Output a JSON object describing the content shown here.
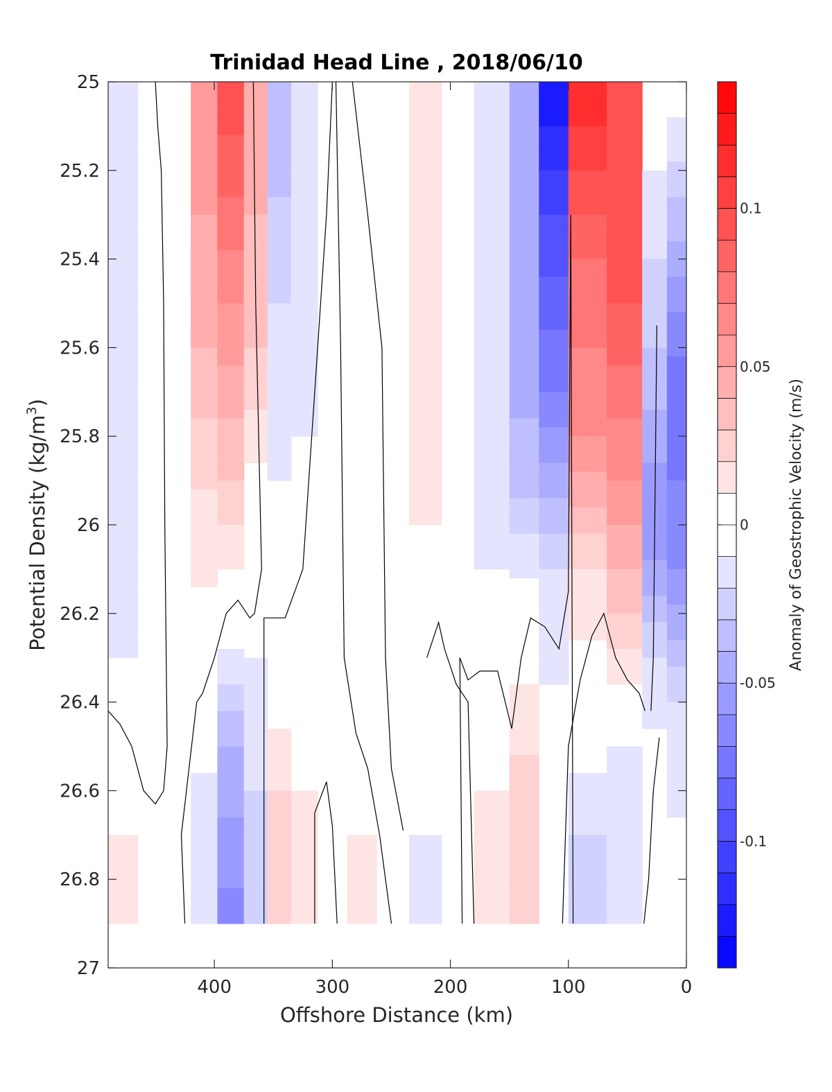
{
  "chart_data": {
    "type": "heatmap",
    "title": "Trinidad Head Line , 2018/06/10",
    "xlabel": "Offshore Distance (km)",
    "ylabel_main": "Potential Density (kg/m",
    "ylabel_sup": "3",
    "ylabel_tail": ")",
    "colorbar_label": "Anomaly of Geostrophic Velocity (m/s)",
    "xlim": [
      490,
      0
    ],
    "x_reversed": true,
    "ylim": [
      25,
      27
    ],
    "y_reversed": true,
    "x_ticks": [
      400,
      300,
      200,
      100,
      0
    ],
    "x_tick_labels": [
      "400",
      "300",
      "200",
      "100",
      "0"
    ],
    "y_ticks": [
      25,
      25.2,
      25.4,
      25.6,
      25.8,
      26,
      26.2,
      26.4,
      26.6,
      26.8,
      27
    ],
    "y_tick_labels": [
      "25",
      "25.2",
      "25.4",
      "25.6",
      "25.8",
      "26",
      "26.2",
      "26.4",
      "26.6",
      "26.8",
      "27"
    ],
    "colorbar_range": [
      -0.14,
      0.14
    ],
    "colorbar_ticks": [
      0.1,
      0.05,
      0,
      -0.05,
      -0.1
    ],
    "colorbar_tick_labels": [
      "0.1",
      "0.05",
      "0",
      "-0.05",
      "-0.1"
    ],
    "colorbar_levels": 28,
    "colors": {
      "negative": "#0000ff",
      "positive": "#ff0000",
      "zero": "#ffffff",
      "contour": "#000000"
    },
    "data_bottom_density": 26.9,
    "grid": false,
    "columns": [
      {
        "x": 475,
        "segments": [
          [
            25.0,
            -0.02
          ],
          [
            25.4,
            -0.02
          ],
          [
            25.8,
            -0.015
          ],
          [
            26.3,
            -0.01
          ],
          [
            26.5,
            0.0
          ],
          [
            26.7,
            0.01
          ],
          [
            26.9,
            0.015
          ]
        ]
      },
      {
        "x": 455,
        "segments": [
          [
            25.0,
            -0.01
          ],
          [
            25.6,
            -0.01
          ],
          [
            26.0,
            -0.005
          ],
          [
            26.5,
            0.0
          ],
          [
            26.9,
            0.005
          ]
        ]
      },
      {
        "x": 430,
        "segments": [
          [
            25.0,
            0.0
          ],
          [
            26.0,
            0.0
          ],
          [
            26.6,
            0.0
          ],
          [
            26.9,
            0.0
          ]
        ]
      },
      {
        "x": 410,
        "segments": [
          [
            25.0,
            0.06
          ],
          [
            25.6,
            0.04
          ],
          [
            26.0,
            0.015
          ],
          [
            26.4,
            0.0
          ],
          [
            26.7,
            -0.02
          ],
          [
            26.9,
            -0.02
          ]
        ]
      },
      {
        "x": 385,
        "segments": [
          [
            25.0,
            0.1
          ],
          [
            25.5,
            0.06
          ],
          [
            25.9,
            0.03
          ],
          [
            26.2,
            0.0
          ],
          [
            26.5,
            -0.04
          ],
          [
            26.9,
            -0.065
          ]
        ]
      },
      {
        "x": 365,
        "segments": [
          [
            25.0,
            0.05
          ],
          [
            25.6,
            0.03
          ],
          [
            26.0,
            0.0
          ],
          [
            26.6,
            -0.02
          ],
          [
            26.9,
            -0.03
          ]
        ]
      },
      {
        "x": 345,
        "segments": [
          [
            25.0,
            -0.04
          ],
          [
            25.5,
            -0.02
          ],
          [
            25.9,
            -0.01
          ],
          [
            26.3,
            0.0
          ],
          [
            26.6,
            0.02
          ],
          [
            26.9,
            0.03
          ]
        ]
      },
      {
        "x": 325,
        "segments": [
          [
            25.0,
            -0.015
          ],
          [
            25.8,
            -0.01
          ],
          [
            26.2,
            0.0
          ],
          [
            26.6,
            0.01
          ],
          [
            26.9,
            0.02
          ]
        ]
      },
      {
        "x": 300,
        "segments": [
          [
            25.0,
            0.0
          ],
          [
            26.0,
            0.0
          ],
          [
            26.9,
            0.0
          ]
        ]
      },
      {
        "x": 275,
        "segments": [
          [
            25.0,
            -0.01
          ],
          [
            25.8,
            -0.01
          ],
          [
            26.2,
            0.0
          ],
          [
            26.6,
            0.005
          ],
          [
            26.9,
            0.02
          ]
        ]
      },
      {
        "x": 250,
        "segments": [
          [
            25.0,
            0.0
          ],
          [
            26.4,
            0.0
          ],
          [
            26.9,
            0.0
          ]
        ]
      },
      {
        "x": 220,
        "segments": [
          [
            25.0,
            0.02
          ],
          [
            25.4,
            0.015
          ],
          [
            26.0,
            0.01
          ],
          [
            26.4,
            0.0
          ],
          [
            26.7,
            -0.01
          ],
          [
            26.9,
            -0.015
          ]
        ]
      },
      {
        "x": 195,
        "segments": [
          [
            25.0,
            0.0
          ],
          [
            26.3,
            0.0
          ],
          [
            26.9,
            0.0
          ]
        ]
      },
      {
        "x": 165,
        "segments": [
          [
            25.0,
            -0.02
          ],
          [
            25.6,
            -0.015
          ],
          [
            26.1,
            -0.01
          ],
          [
            26.4,
            0.0
          ],
          [
            26.7,
            0.015
          ],
          [
            26.9,
            0.02
          ]
        ]
      },
      {
        "x": 135,
        "segments": [
          [
            25.0,
            -0.04
          ],
          [
            25.5,
            -0.05
          ],
          [
            25.9,
            -0.035
          ],
          [
            26.2,
            0.0
          ],
          [
            26.6,
            0.025
          ],
          [
            26.9,
            0.03
          ]
        ]
      },
      {
        "x": 115,
        "segments": [
          [
            25.0,
            -0.13
          ],
          [
            25.3,
            -0.1
          ],
          [
            25.7,
            -0.07
          ],
          [
            26.1,
            -0.02
          ],
          [
            26.6,
            0.0
          ],
          [
            26.9,
            -0.005
          ]
        ]
      },
      {
        "x": 85,
        "segments": [
          [
            25.0,
            0.12
          ],
          [
            25.4,
            0.08
          ],
          [
            25.8,
            0.06
          ],
          [
            26.1,
            0.02
          ],
          [
            26.4,
            0.0
          ],
          [
            26.7,
            -0.02
          ],
          [
            26.9,
            -0.03
          ]
        ]
      },
      {
        "x": 50,
        "segments": [
          [
            25.0,
            0.1
          ],
          [
            25.5,
            0.09
          ],
          [
            25.9,
            0.06
          ],
          [
            26.2,
            0.03
          ],
          [
            26.5,
            -0.01
          ],
          [
            26.7,
            -0.02
          ],
          [
            26.9,
            -0.01
          ]
        ]
      },
      {
        "x": 25,
        "segments": [
          [
            25.0,
            0.0
          ],
          [
            25.6,
            -0.03
          ],
          [
            26.0,
            -0.06
          ],
          [
            26.3,
            -0.02
          ],
          [
            26.6,
            0.0
          ],
          [
            26.9,
            0.0
          ]
        ]
      },
      {
        "x": 8,
        "segments": [
          [
            25.0,
            0.0
          ],
          [
            25.7,
            -0.08
          ],
          [
            26.1,
            -0.06
          ],
          [
            26.4,
            -0.02
          ],
          [
            26.9,
            0.0
          ]
        ]
      }
    ],
    "contour_lines": [
      {
        "name": "zero-contour",
        "points": [
          [
            490,
            26.42
          ],
          [
            480,
            26.45
          ],
          [
            470,
            26.5
          ],
          [
            460,
            26.6
          ],
          [
            450,
            26.63
          ],
          [
            443,
            26.6
          ],
          [
            440,
            26.5
          ],
          [
            442,
            26.0
          ],
          [
            443,
            25.5
          ],
          [
            445,
            25.2
          ],
          [
            448,
            25.1
          ],
          [
            450,
            25.0
          ]
        ]
      },
      {
        "name": "zero-contour",
        "points": [
          [
            425,
            26.9
          ],
          [
            428,
            26.7
          ],
          [
            415,
            26.4
          ],
          [
            410,
            26.38
          ],
          [
            400,
            26.3
          ],
          [
            390,
            26.2
          ],
          [
            380,
            26.17
          ],
          [
            370,
            26.21
          ],
          [
            366,
            26.2
          ],
          [
            360,
            26.1
          ],
          [
            365,
            25.5
          ],
          [
            367,
            25.0
          ]
        ]
      },
      {
        "name": "zero-contour",
        "points": [
          [
            358,
            26.9
          ],
          [
            358,
            26.21
          ],
          [
            345,
            26.21
          ],
          [
            340,
            26.21
          ],
          [
            325,
            26.1
          ],
          [
            315,
            25.7
          ],
          [
            305,
            25.3
          ],
          [
            300,
            25.0
          ]
        ]
      },
      {
        "name": "zero-contour",
        "points": [
          [
            315,
            26.9
          ],
          [
            315,
            26.65
          ],
          [
            305,
            26.58
          ],
          [
            300,
            26.68
          ],
          [
            296,
            26.9
          ]
        ]
      },
      {
        "name": "zero-contour",
        "points": [
          [
            297,
            25.0
          ],
          [
            293,
            25.6
          ],
          [
            290,
            26.3
          ],
          [
            280,
            26.47
          ],
          [
            270,
            26.55
          ],
          [
            260,
            26.7
          ],
          [
            250,
            26.9
          ]
        ]
      },
      {
        "name": "zero-contour",
        "points": [
          [
            240,
            26.69
          ],
          [
            250,
            26.55
          ],
          [
            255,
            26.3
          ],
          [
            258,
            25.6
          ],
          [
            270,
            25.3
          ],
          [
            283,
            25.0
          ]
        ]
      },
      {
        "name": "zero-contour",
        "points": [
          [
            220,
            26.3
          ],
          [
            210,
            26.22
          ],
          [
            205,
            26.28
          ],
          [
            195,
            26.36
          ],
          [
            185,
            26.4
          ],
          [
            180,
            26.9
          ]
        ]
      },
      {
        "name": "zero-contour",
        "points": [
          [
            190,
            26.9
          ],
          [
            192,
            26.3
          ],
          [
            185,
            26.35
          ],
          [
            175,
            26.33
          ],
          [
            160,
            26.33
          ],
          [
            148,
            26.46
          ],
          [
            140,
            26.3
          ],
          [
            132,
            26.21
          ],
          [
            120,
            26.23
          ],
          [
            108,
            26.28
          ],
          [
            100,
            26.15
          ],
          [
            98,
            25.3
          ],
          [
            96,
            26.9
          ]
        ]
      },
      {
        "name": "zero-contour",
        "points": [
          [
            105,
            26.9
          ],
          [
            100,
            26.5
          ],
          [
            90,
            26.35
          ],
          [
            80,
            26.25
          ],
          [
            70,
            26.2
          ],
          [
            60,
            26.3
          ],
          [
            50,
            26.35
          ],
          [
            40,
            26.38
          ],
          [
            35,
            26.42
          ]
        ]
      },
      {
        "name": "zero-contour",
        "points": [
          [
            30,
            26.42
          ],
          [
            28,
            26.3
          ],
          [
            25,
            25.55
          ]
        ]
      },
      {
        "name": "zero-contour",
        "points": [
          [
            36,
            26.9
          ],
          [
            32,
            26.8
          ],
          [
            28,
            26.6
          ],
          [
            23,
            26.48
          ]
        ]
      }
    ]
  }
}
